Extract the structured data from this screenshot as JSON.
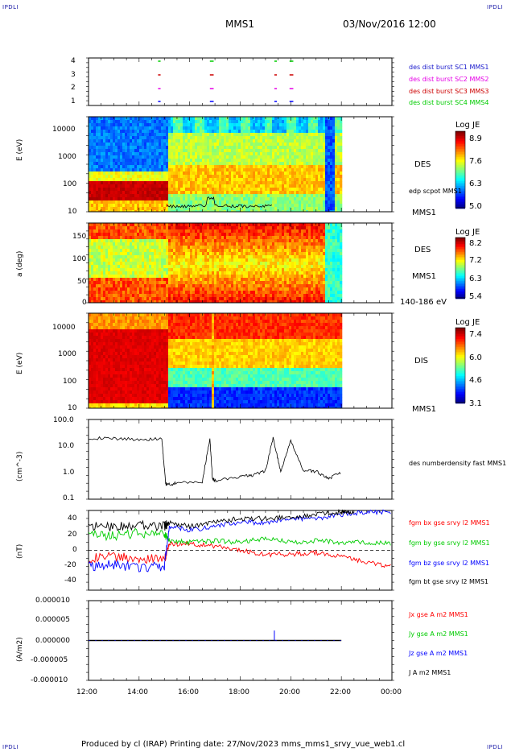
{
  "corners": {
    "tl": "IPDLI",
    "tr": "IPDLI",
    "bl": "IPDLI",
    "br": "IPDLI"
  },
  "header": {
    "spacecraft": "MMS1",
    "date": "03/Nov/2016 12:00"
  },
  "footer": {
    "text": "Produced by cl (IRAP)   Printing date: 27/Nov/2023   mms_mms1_srvy_vue_web1.cl"
  },
  "x_ticks": [
    "12:00",
    "14:00",
    "16:00",
    "18:00",
    "20:00",
    "22:00",
    "00:00"
  ],
  "colors": {
    "black": "#000000",
    "green": "#00cc00",
    "blue": "#0000ff",
    "red": "#ff0000",
    "magenta": "#e600e6",
    "darkred": "#cc0000"
  },
  "chart_data": [
    {
      "type": "scatter",
      "panel": "burst availability",
      "yticks": [
        "4",
        "3",
        "2",
        "1"
      ],
      "series": [
        {
          "name": "des dist burst SC1 MMS1",
          "color": "#0000ff"
        },
        {
          "name": "des dist burst SC2 MMS2",
          "color": "#e600e6"
        },
        {
          "name": "des dist burst SC3 MMS3",
          "color": "#cc0000"
        },
        {
          "name": "des dist burst SC4 MMS4",
          "color": "#00cc00"
        }
      ],
      "bursts_hours": [
        [
          14.75,
          14.85
        ],
        [
          16.8,
          16.95
        ],
        [
          19.35,
          19.45
        ],
        [
          19.95,
          20.1
        ]
      ]
    },
    {
      "type": "heatmap",
      "panel": "DES energy spectrogram",
      "ylabel": "E (eV)",
      "yticks": [
        "10000",
        "1000",
        "100",
        "10"
      ],
      "ylim": [
        10,
        30000
      ],
      "scale": "log",
      "right_labels": [
        "DES",
        "MMS1",
        "edp scpot MMS1"
      ],
      "colorbar": {
        "title": "Log JE",
        "ticks": [
          "8.9",
          "7.6",
          "6.3",
          "5.0"
        ]
      }
    },
    {
      "type": "heatmap",
      "panel": "DES pitch angle",
      "ylabel": "a (deg)",
      "yticks": [
        "150",
        "100",
        "50",
        "0"
      ],
      "ylim": [
        0,
        180
      ],
      "right_labels": [
        "DES",
        "MMS1",
        "140-186 eV"
      ],
      "colorbar": {
        "title": "Log JE",
        "ticks": [
          "8.2",
          "7.2",
          "6.3",
          "5.4"
        ]
      }
    },
    {
      "type": "heatmap",
      "panel": "DIS energy spectrogram",
      "ylabel": "E (eV)",
      "yticks": [
        "10000",
        "1000",
        "100",
        "10"
      ],
      "ylim": [
        10,
        30000
      ],
      "scale": "log",
      "right_labels": [
        "DIS",
        "MMS1"
      ],
      "colorbar": {
        "title": "Log JE",
        "ticks": [
          "7.4",
          "6.0",
          "4.6",
          "3.1"
        ]
      }
    },
    {
      "type": "line",
      "panel": "density",
      "ylabel": "(cm^-3)",
      "yticks": [
        "100.0",
        "10.0",
        "1.0",
        "0.1"
      ],
      "ylim": [
        0.1,
        100
      ],
      "scale": "log",
      "series": [
        {
          "name": "des numberdensity fast MMS1",
          "color": "#000000",
          "x": [
            12.0,
            13.0,
            14.0,
            14.9,
            15.05,
            15.1,
            15.5,
            16.5,
            16.8,
            16.9,
            17.0,
            18.0,
            18.5,
            19.0,
            19.3,
            19.6,
            20.0,
            20.5,
            21.0,
            21.5,
            22.0
          ],
          "y": [
            20,
            19,
            18,
            18,
            0.4,
            0.35,
            0.4,
            0.45,
            20,
            0.6,
            0.5,
            0.7,
            0.8,
            1.2,
            20,
            1.1,
            15,
            1.2,
            1.1,
            0.6,
            1.0
          ]
        }
      ]
    },
    {
      "type": "line",
      "panel": "magnetic field",
      "ylabel": "(nT)",
      "yticks": [
        "40",
        "20",
        "0",
        "-20",
        "-40"
      ],
      "ylim": [
        -50,
        50
      ],
      "series": [
        {
          "name": "fgm bx gse srvy l2 MMS1",
          "color": "#ff0000",
          "x": [
            12,
            13,
            14,
            15,
            15.2,
            16,
            17,
            18,
            19,
            20,
            21,
            22,
            23,
            24
          ],
          "y": [
            -10,
            -8,
            -10,
            -12,
            8,
            8,
            5,
            0,
            -5,
            -5,
            -3,
            -8,
            -15,
            -20
          ]
        },
        {
          "name": "fgm by gse srvy l2 MMS1",
          "color": "#00cc00",
          "x": [
            12,
            13,
            14,
            15,
            15.2,
            16,
            17,
            18,
            19,
            20,
            21,
            22,
            23,
            24
          ],
          "y": [
            20,
            18,
            22,
            20,
            12,
            10,
            12,
            10,
            15,
            10,
            12,
            10,
            10,
            8
          ]
        },
        {
          "name": "fgm bz gse srvy l2 MMS1",
          "color": "#0000ff",
          "x": [
            12,
            13,
            14,
            15,
            15.2,
            16,
            17,
            18,
            19,
            20,
            21,
            22,
            23,
            24
          ],
          "y": [
            -20,
            -18,
            -22,
            -20,
            30,
            25,
            30,
            35,
            35,
            40,
            40,
            45,
            48,
            48
          ]
        },
        {
          "name": "fgm bt gse srvy l2 MMS1",
          "color": "#000000",
          "x": [
            12,
            13,
            14,
            15,
            15.2,
            16,
            17,
            18,
            19,
            20,
            21,
            22,
            22.5
          ],
          "y": [
            30,
            30,
            32,
            30,
            35,
            30,
            35,
            40,
            40,
            42,
            45,
            48,
            48
          ]
        }
      ]
    },
    {
      "type": "line",
      "panel": "current density",
      "ylabel": "(A/m2)",
      "yticks": [
        "0.000010",
        "0.000005",
        "0.000000",
        "-0.000005",
        "-0.000010"
      ],
      "ylim": [
        -1e-05,
        1e-05
      ],
      "series": [
        {
          "name": "Jx gse A m2 MMS1",
          "color": "#ff0000"
        },
        {
          "name": "Jy gse A m2 MMS1",
          "color": "#00cc00"
        },
        {
          "name": "Jz gse A m2 MMS1",
          "color": "#0000ff"
        },
        {
          "name": "J A m2 MMS1",
          "color": "#000000"
        }
      ],
      "x": [
        12,
        16.8,
        19.35,
        22.0
      ],
      "y": [
        0,
        0,
        2.5e-06,
        0
      ]
    }
  ]
}
